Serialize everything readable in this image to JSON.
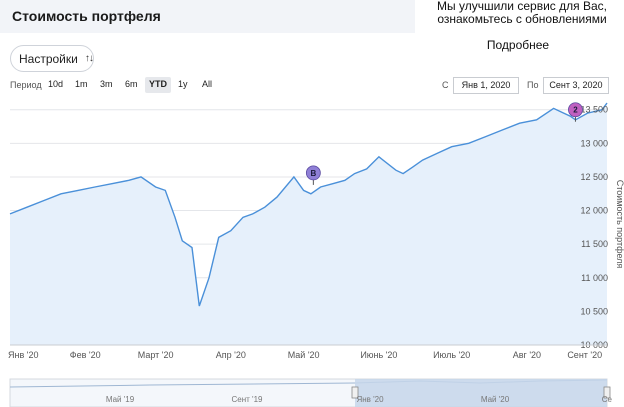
{
  "page": {
    "title": "Стоимость портфеля"
  },
  "notice": {
    "line1": "Мы улучшили сервис для Вас,",
    "line2": "ознакомьтесь с обновлениями",
    "link": "Подробнее"
  },
  "settings": {
    "label": "Настройки",
    "icon": "sort-icon"
  },
  "period": {
    "label": "Период",
    "buttons": [
      "10d",
      "1m",
      "3m",
      "6m",
      "YTD",
      "1y",
      "All"
    ],
    "active": "YTD"
  },
  "range": {
    "from_label": "С",
    "from_value": "Янв 1, 2020",
    "to_label": "По",
    "to_value": "Сент 3, 2020"
  },
  "colors": {
    "line": "#4a90d9",
    "area": "#e6f0fb",
    "marker_b": "#8f7fd6",
    "marker_2": "#c060c0",
    "navigator_sel": "#c5d6ea"
  },
  "chart_data": {
    "type": "area",
    "ylabel": "Стоимость портфеля",
    "ylim": [
      10000,
      13600
    ],
    "yticks": [
      "10 000",
      "10 500",
      "11 000",
      "11 500",
      "12 000",
      "12 500",
      "13 000",
      "13 500"
    ],
    "ytick_values": [
      10000,
      10500,
      11000,
      11500,
      12000,
      12500,
      13000,
      13500
    ],
    "xticks": [
      "Янв '20",
      "Фев '20",
      "Март '20",
      "Апр '20",
      "Май '20",
      "Июнь '20",
      "Июль '20",
      "Авг '20",
      "Сент '20"
    ],
    "x": [
      "2020-01-01",
      "2020-01-08",
      "2020-01-15",
      "2020-01-22",
      "2020-01-29",
      "2020-02-05",
      "2020-02-12",
      "2020-02-19",
      "2020-02-24",
      "2020-03-01",
      "2020-03-05",
      "2020-03-09",
      "2020-03-12",
      "2020-03-16",
      "2020-03-19",
      "2020-03-23",
      "2020-03-27",
      "2020-04-01",
      "2020-04-06",
      "2020-04-10",
      "2020-04-15",
      "2020-04-20",
      "2020-04-27",
      "2020-05-01",
      "2020-05-04",
      "2020-05-08",
      "2020-05-13",
      "2020-05-18",
      "2020-05-22",
      "2020-05-27",
      "2020-06-01",
      "2020-06-08",
      "2020-06-11",
      "2020-06-15",
      "2020-06-19",
      "2020-06-25",
      "2020-07-01",
      "2020-07-08",
      "2020-07-15",
      "2020-07-22",
      "2020-07-29",
      "2020-08-05",
      "2020-08-12",
      "2020-08-19",
      "2020-08-21",
      "2020-08-26",
      "2020-09-01",
      "2020-09-03"
    ],
    "values": [
      11950,
      12050,
      12150,
      12250,
      12300,
      12350,
      12400,
      12450,
      12500,
      12350,
      12300,
      11900,
      11550,
      11450,
      10580,
      11000,
      11600,
      11700,
      11900,
      11950,
      12050,
      12200,
      12500,
      12300,
      12250,
      12350,
      12400,
      12450,
      12550,
      12620,
      12800,
      12600,
      12550,
      12650,
      12750,
      12850,
      12950,
      13000,
      13100,
      13200,
      13300,
      13350,
      13520,
      13400,
      13350,
      13450,
      13500,
      13600
    ],
    "annotations": [
      {
        "label": "B",
        "date": "2020-05-05",
        "value": 12560
      },
      {
        "label": "2",
        "date": "2020-08-21",
        "value": 13500
      }
    ],
    "navigator": {
      "xticks": [
        "Май '19",
        "Сент '19",
        "Янв '20",
        "Май '20",
        "Се"
      ]
    }
  }
}
